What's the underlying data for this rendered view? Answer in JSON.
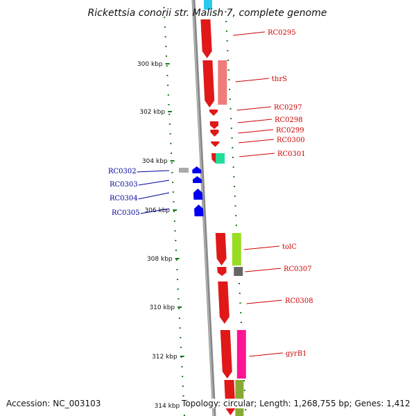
{
  "title": "Rickettsia conorii str. Malish 7, complete genome",
  "footer": {
    "accession": "Accession: NC_003103",
    "summary": "Topology: circular; Length: 1,268,755 bp; Genes: 1,412"
  },
  "colors": {
    "forward_gene": "#e01818",
    "reverse_gene": "#0000ee",
    "forward_label": "#cc0000",
    "reverse_label": "#000099",
    "tick": "#1a7a1a",
    "backbone": "#888888"
  },
  "ticks": [
    {
      "label": "300 kbp"
    },
    {
      "label": "302 kbp"
    },
    {
      "label": "304 kbp"
    },
    {
      "label": "306 kbp"
    },
    {
      "label": "308 kbp"
    },
    {
      "label": "310 kbp"
    },
    {
      "label": "312 kbp"
    },
    {
      "label": "314 kbp"
    }
  ],
  "forward_genes": [
    {
      "label": "RC0295",
      "cog": "#ffffff"
    },
    {
      "label": "thrS",
      "cog": "#f07b7b"
    },
    {
      "label": "RC0297",
      "cog": ""
    },
    {
      "label": "RC0298",
      "cog": ""
    },
    {
      "label": "RC0299",
      "cog": ""
    },
    {
      "label": "RC0300",
      "cog": ""
    },
    {
      "label": "RC0301",
      "cog": "#22dd99"
    },
    {
      "label": "tolC",
      "cog": "#99dd22"
    },
    {
      "label": "RC0307",
      "cog": "#666666"
    },
    {
      "label": "RC0308",
      "cog": ""
    },
    {
      "label": "gyrB1",
      "cog": "#ff1493"
    }
  ],
  "reverse_genes": [
    {
      "label": "RC0302",
      "cog": "#aaaaaa"
    },
    {
      "label": "RC0303",
      "cog": ""
    },
    {
      "label": "RC0304",
      "cog": ""
    },
    {
      "label": "RC0305",
      "cog": ""
    }
  ]
}
